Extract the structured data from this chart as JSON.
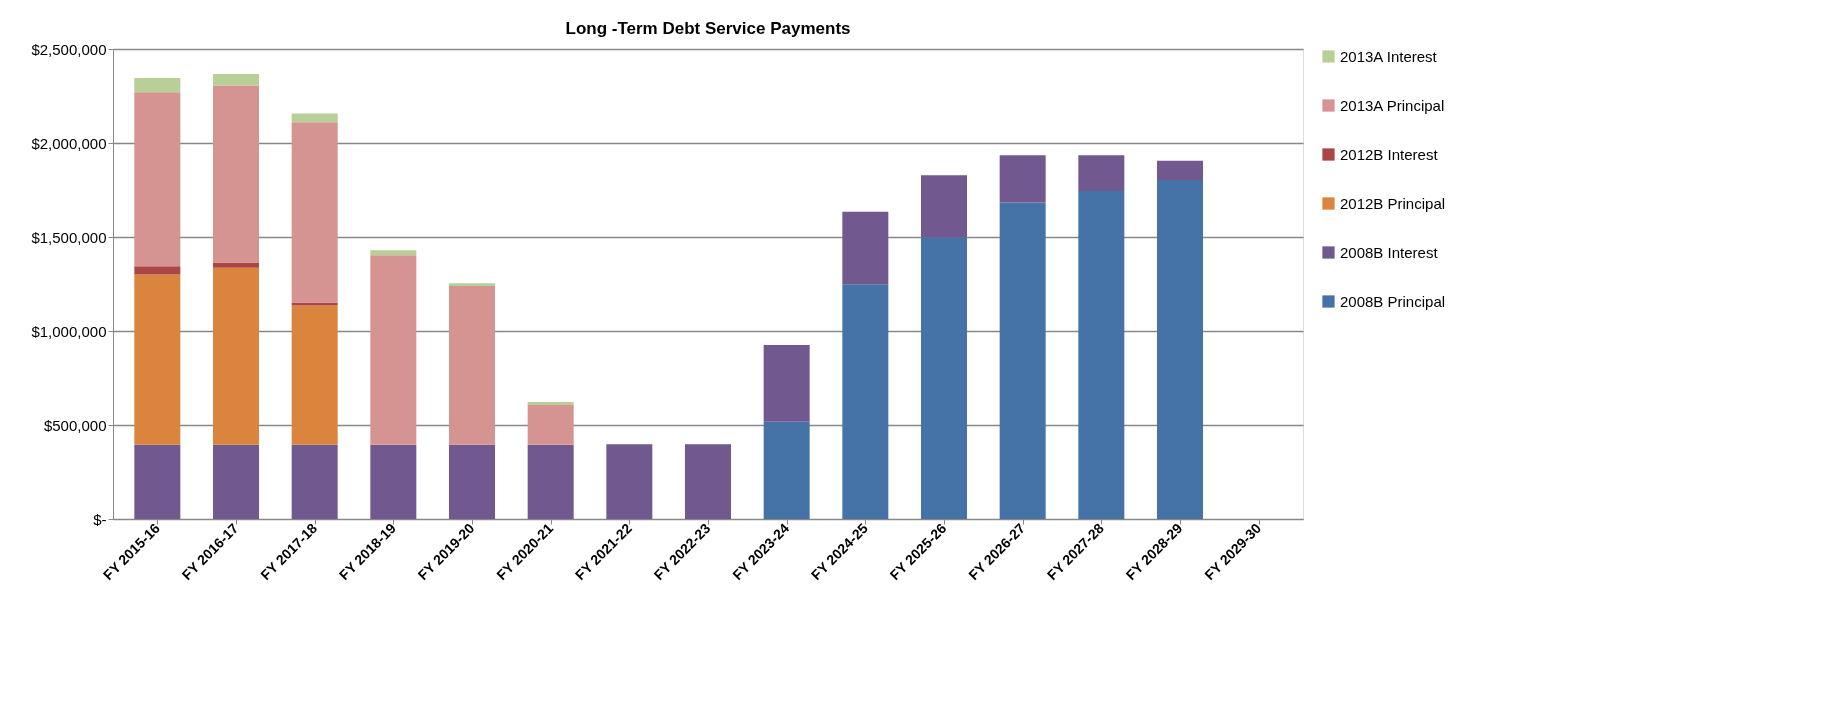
{
  "chart_data": {
    "type": "bar",
    "title": "Long -Term Debt Service Payments",
    "stacked": true,
    "categories": [
      "FY 2015-16",
      "FY 2016-17",
      "FY 2017-18",
      "FY 2018-19",
      "FY 2019-20",
      "FY 2020-21",
      "FY 2021-22",
      "FY 2022-23",
      "FY 2023-24",
      "FY 2024-25",
      "FY 2025-26",
      "FY 2026-27",
      "FY 2027-28",
      "FY 2028-29",
      "FY 2029-30"
    ],
    "series": [
      {
        "name": "2008B Principal",
        "color": "#4572a7",
        "values": [
          null,
          null,
          null,
          null,
          null,
          null,
          null,
          null,
          517000,
          1249000,
          1498000,
          1683000,
          1745000,
          1803000,
          null
        ]
      },
      {
        "name": "2008B Interest",
        "color": "#71588f",
        "values": [
          395000,
          395000,
          395000,
          395000,
          395000,
          395000,
          397000,
          397000,
          409000,
          385000,
          330000,
          252000,
          190000,
          102000,
          null
        ]
      },
      {
        "name": "2012B Principal",
        "color": "#db843d",
        "values": [
          906000,
          942000,
          740000,
          null,
          null,
          null,
          null,
          null,
          null,
          null,
          null,
          null,
          null,
          null,
          null
        ]
      },
      {
        "name": "2012B Interest",
        "color": "#aa4643",
        "values": [
          44000,
          27000,
          17000,
          null,
          null,
          null,
          null,
          null,
          null,
          null,
          null,
          null,
          null,
          null,
          null
        ]
      },
      {
        "name": "2013A Principal",
        "color": "#d59392",
        "values": [
          925000,
          942000,
          959000,
          1008000,
          844000,
          212000,
          null,
          null,
          null,
          null,
          null,
          null,
          null,
          null,
          null
        ]
      },
      {
        "name": "2013A Interest",
        "color": "#b8cf97",
        "values": [
          76000,
          61000,
          46000,
          27000,
          15000,
          15000,
          null,
          null,
          null,
          null,
          null,
          null,
          null,
          null,
          null
        ]
      }
    ],
    "ylim": [
      0,
      2500000
    ],
    "yticks": [
      {
        "value": 0,
        "label": "$-"
      },
      {
        "value": 500000,
        "label": "$500,000"
      },
      {
        "value": 1000000,
        "label": "$1,000,000"
      },
      {
        "value": 1500000,
        "label": "$1,500,000"
      },
      {
        "value": 2000000,
        "label": "$2,000,000"
      },
      {
        "value": 2500000,
        "label": "$2,500,000"
      }
    ],
    "grid": "y",
    "legend": "right"
  }
}
